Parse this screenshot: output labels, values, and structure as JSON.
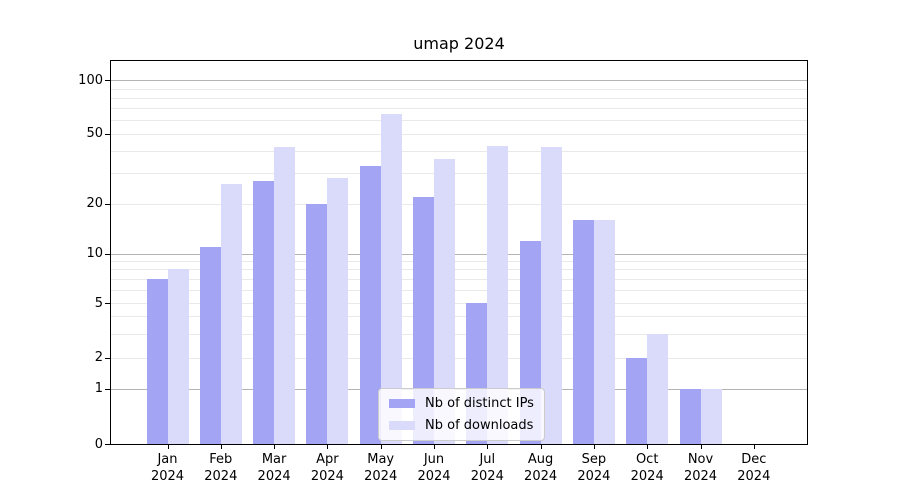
{
  "chart_data": {
    "type": "bar",
    "title": "umap 2024",
    "year_label": "2024",
    "categories": [
      "Jan",
      "Feb",
      "Mar",
      "Apr",
      "May",
      "Jun",
      "Jul",
      "Aug",
      "Sep",
      "Oct",
      "Nov",
      "Dec"
    ],
    "series": [
      {
        "name": "Nb of distinct IPs",
        "color": "#a4a4f5",
        "values": [
          7,
          11,
          27,
          20,
          33,
          22,
          5,
          12,
          16,
          2,
          1,
          0
        ]
      },
      {
        "name": "Nb of downloads",
        "color": "#dadafb",
        "values": [
          8,
          26,
          42,
          28,
          65,
          36,
          43,
          42,
          16,
          3,
          1,
          0
        ]
      }
    ],
    "y_axis": {
      "scale": "symlog",
      "tick_labels": [
        "100",
        "50",
        "20",
        "10",
        "5",
        "2",
        "1",
        "0"
      ],
      "tick_values": [
        100,
        50,
        20,
        10,
        5,
        2,
        1,
        0
      ],
      "major_gridlines": [
        1,
        10,
        100
      ],
      "minor_gridlines": [
        2,
        3,
        4,
        5,
        6,
        7,
        8,
        9,
        20,
        30,
        40,
        50,
        60,
        70,
        80,
        90
      ],
      "range_max_value": 130
    },
    "legend_position": "lower center",
    "grid": true,
    "colors": {
      "major_grid": "#b4b4b4",
      "minor_grid": "#e9e9e9",
      "axis": "#000000",
      "background": "#ffffff"
    }
  }
}
